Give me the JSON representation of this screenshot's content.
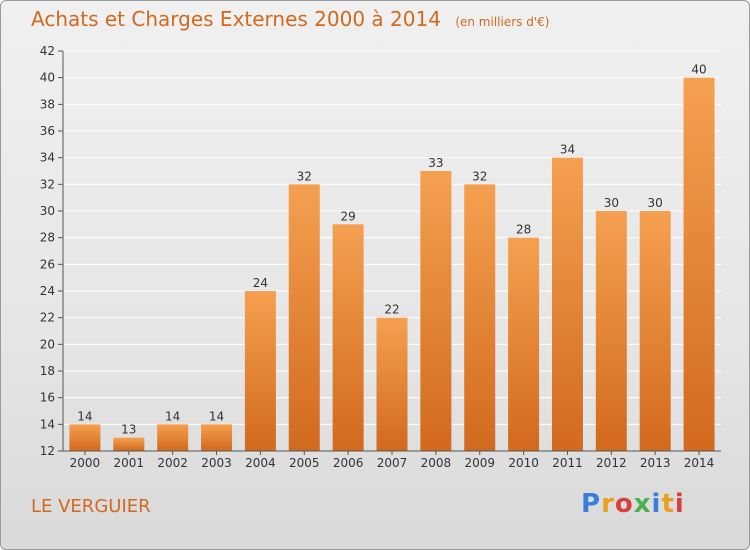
{
  "header": {
    "title": "Achats et Charges Externes 2000 à 2014",
    "unit": "(en milliers d'€)"
  },
  "footer": {
    "place": "LE VERGUIER",
    "brand": "Proxiti"
  },
  "colors": {
    "bar_top": "#f5a050",
    "bar_bottom": "#d2691e",
    "text_accent": "#d2691e",
    "grid": "#ffffff"
  },
  "chart_data": {
    "type": "bar",
    "categories": [
      "2000",
      "2001",
      "2002",
      "2003",
      "2004",
      "2005",
      "2006",
      "2007",
      "2008",
      "2009",
      "2010",
      "2011",
      "2012",
      "2013",
      "2014"
    ],
    "values": [
      14,
      13,
      14,
      14,
      24,
      32,
      29,
      22,
      33,
      32,
      28,
      34,
      30,
      30,
      40
    ],
    "title": "Achats et Charges Externes 2000 à 2014",
    "unit": "(en milliers d'€)",
    "ylim": [
      12,
      42
    ],
    "yticks": [
      12,
      14,
      16,
      18,
      20,
      22,
      24,
      26,
      28,
      30,
      32,
      34,
      36,
      38,
      40,
      42
    ],
    "grid": true
  }
}
